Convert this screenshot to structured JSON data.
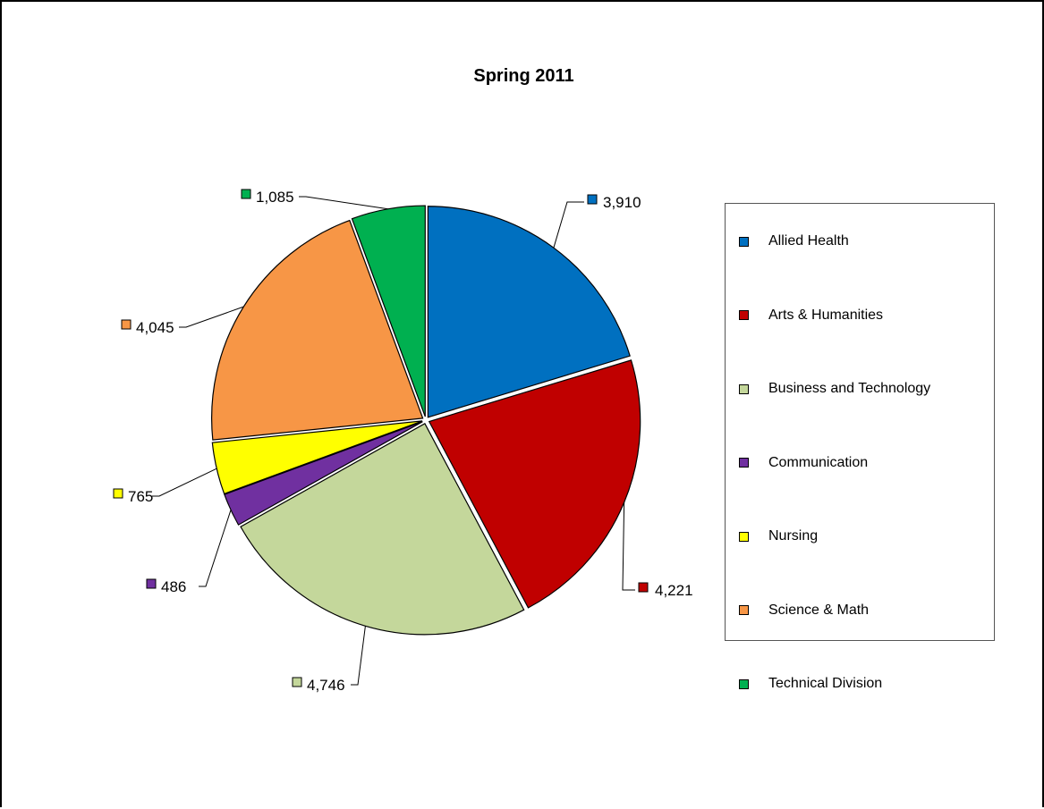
{
  "chart_data": {
    "type": "pie",
    "title": "Spring 2011",
    "categories": [
      "Allied Health",
      "Arts & Humanities",
      "Business and Technology",
      "Communication",
      "Nursing",
      "Science & Math",
      "Technical Division"
    ],
    "values": [
      3910,
      4221,
      4746,
      486,
      765,
      4045,
      1085
    ],
    "data_labels": [
      "3,910",
      "4,221",
      "4,746",
      "486",
      "765",
      "4,045",
      "1,085"
    ],
    "colors": [
      "#0070c0",
      "#c00000",
      "#c4d79b",
      "#7030a0",
      "#ffff00",
      "#f79646",
      "#00b050"
    ],
    "legend_position": "right",
    "exploded": true
  }
}
